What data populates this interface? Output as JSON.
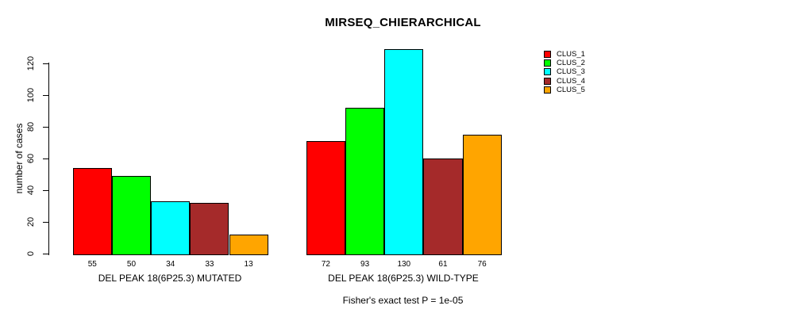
{
  "chart_data": {
    "type": "bar",
    "title": "MIRSEQ_CHIERARCHICAL",
    "ylabel": "number of cases",
    "xlabel": "",
    "ylim": [
      0,
      130
    ],
    "yticks": [
      0,
      20,
      40,
      60,
      80,
      100,
      120
    ],
    "grid": false,
    "legend_position": "top-right",
    "bar_border_color": "#000000",
    "background_color": "#ffffff",
    "series": [
      {
        "name": "CLUS_1",
        "color": "#ff0000"
      },
      {
        "name": "CLUS_2",
        "color": "#00ff00"
      },
      {
        "name": "CLUS_3",
        "color": "#00ffff"
      },
      {
        "name": "CLUS_4",
        "color": "#a52a2a"
      },
      {
        "name": "CLUS_5",
        "color": "#ffa500"
      }
    ],
    "groups": [
      {
        "label": "DEL PEAK 18(6P25.3) MUTATED",
        "values": [
          55,
          50,
          34,
          33,
          13
        ]
      },
      {
        "label": "DEL PEAK 18(6P25.3) WILD-TYPE",
        "values": [
          72,
          93,
          130,
          61,
          76
        ]
      }
    ],
    "annotation": "Fisher's exact test P = 1e-05"
  }
}
